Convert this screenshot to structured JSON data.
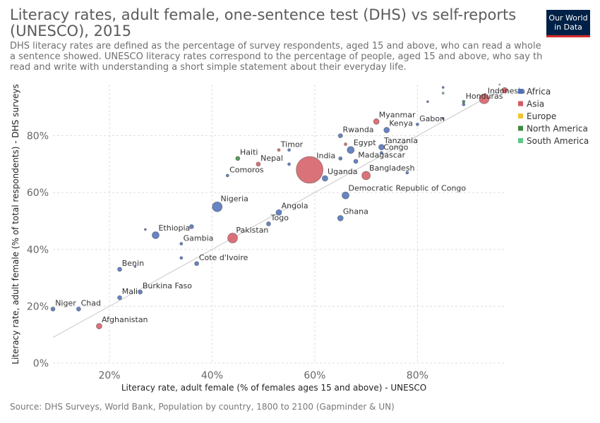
{
  "title": "Literacy rates, adult female, one-sentence test (DHS) vs self-reports (UNESCO), 2015",
  "subtitle": "DHS literacy rates are defined as the percentage of survey respondents, aged 15 and above, who can read a whole\na sentence showed. UNESCO literacy rates correspond to the percentage of people, aged 15 and above, who say th\nread and write with understanding a short simple statement about their everyday life.",
  "logo": "Our World\nin Data",
  "source": "Source: DHS Surveys, World Bank, Population by country, 1800 to 2100 (Gapminder & UN)",
  "colors": {
    "Africa": "#4c6fb8",
    "Asia": "#d45a62",
    "Europe": "#f2c230",
    "North America": "#3f8a3f",
    "South America": "#5ec78a",
    "reference_line": "#c8c8c8",
    "grid": "#dddddd"
  },
  "chart_data": {
    "type": "scatter",
    "title": "Literacy rates, adult female, one-sentence test (DHS) vs self-reports (UNESCO), 2015",
    "xlabel": "Literacy rate, adult female (% of females ages 15 and above) - UNESCO",
    "ylabel": "Literacy rate, adult female (% of total respondents) - DHS surveys",
    "xlim": [
      9,
      97
    ],
    "ylim": [
      0,
      98
    ],
    "xticks": [
      20,
      40,
      60,
      80
    ],
    "yticks": [
      0,
      20,
      40,
      60,
      80
    ],
    "tick_suffix": "%",
    "grid": true,
    "reference_line": "y = x",
    "legend_position": "right",
    "legend": [
      "Africa",
      "Asia",
      "Europe",
      "North America",
      "South America"
    ],
    "bubble_size": "population",
    "points": [
      {
        "label": "India",
        "x": 59,
        "y": 68,
        "region": "Asia",
        "r": 19
      },
      {
        "label": "Indonesia",
        "x": 93,
        "y": 93,
        "region": "Asia",
        "r": 7
      },
      {
        "label": "Honduras",
        "x": 89,
        "y": 92,
        "region": "North America",
        "r": 2
      },
      {
        "label": "Myanmar",
        "x": 72,
        "y": 85,
        "region": "Asia",
        "r": 4
      },
      {
        "label": "Kenya",
        "x": 74,
        "y": 82,
        "region": "Africa",
        "r": 4
      },
      {
        "label": "Gabon",
        "x": 80,
        "y": 84,
        "region": "Africa",
        "r": 2
      },
      {
        "label": "Rwanda",
        "x": 65,
        "y": 80,
        "region": "Africa",
        "r": 3
      },
      {
        "label": "Egypt",
        "x": 67,
        "y": 75,
        "region": "Africa",
        "r": 5
      },
      {
        "label": "Tanzania",
        "x": 73,
        "y": 76,
        "region": "Africa",
        "r": 4
      },
      {
        "label": "Congo",
        "x": 73,
        "y": 74,
        "region": "Africa",
        "r": 2
      },
      {
        "label": "Madagascar",
        "x": 68,
        "y": 71,
        "region": "Africa",
        "r": 3
      },
      {
        "label": "Bangladesh",
        "x": 70,
        "y": 66,
        "region": "Asia",
        "r": 6
      },
      {
        "label": "Uganda",
        "x": 62,
        "y": 65,
        "region": "Africa",
        "r": 4
      },
      {
        "label": "Democratic Republic of Congo",
        "x": 66,
        "y": 59,
        "region": "Africa",
        "r": 5
      },
      {
        "label": "Timor",
        "x": 53,
        "y": 75,
        "region": "Asia",
        "r": 2
      },
      {
        "label": "Nepal",
        "x": 49,
        "y": 70,
        "region": "Asia",
        "r": 3
      },
      {
        "label": "Haiti",
        "x": 45,
        "y": 72,
        "region": "North America",
        "r": 3
      },
      {
        "label": "Comoros",
        "x": 43,
        "y": 66,
        "region": "Africa",
        "r": 2
      },
      {
        "label": "Nigeria",
        "x": 41,
        "y": 55,
        "region": "Africa",
        "r": 7
      },
      {
        "label": "Angola",
        "x": 53,
        "y": 53,
        "region": "Africa",
        "r": 4
      },
      {
        "label": "Togo",
        "x": 51,
        "y": 49,
        "region": "Africa",
        "r": 3
      },
      {
        "label": "Ghana",
        "x": 65,
        "y": 51,
        "region": "Africa",
        "r": 4
      },
      {
        "label": "Pakistan",
        "x": 44,
        "y": 44,
        "region": "Asia",
        "r": 7
      },
      {
        "label": "Ethiopia",
        "x": 29,
        "y": 45,
        "region": "Africa",
        "r": 5
      },
      {
        "label": "Gambia",
        "x": 34,
        "y": 42,
        "region": "Africa",
        "r": 2
      },
      {
        "label": "Cote d'Ivoire",
        "x": 37,
        "y": 35,
        "region": "Africa",
        "r": 3
      },
      {
        "label": "Benin",
        "x": 22,
        "y": 33,
        "region": "Africa",
        "r": 3
      },
      {
        "label": "Burkina Faso",
        "x": 26,
        "y": 25,
        "region": "Africa",
        "r": 3
      },
      {
        "label": "Mali",
        "x": 22,
        "y": 23,
        "region": "Africa",
        "r": 3
      },
      {
        "label": "Niger",
        "x": 9,
        "y": 19,
        "region": "Africa",
        "r": 3
      },
      {
        "label": "Chad",
        "x": 14,
        "y": 19,
        "region": "Africa",
        "r": 3
      },
      {
        "label": "Afghanistan",
        "x": 18,
        "y": 13,
        "region": "Asia",
        "r": 4
      },
      {
        "label": "",
        "x": 97,
        "y": 96,
        "region": "Asia",
        "r": 4
      },
      {
        "label": "",
        "x": 96,
        "y": 98,
        "region": "Europe",
        "r": 1
      },
      {
        "label": "",
        "x": 85,
        "y": 97,
        "region": "Africa",
        "r": 1.5
      },
      {
        "label": "",
        "x": 82,
        "y": 92,
        "region": "Africa",
        "r": 1.5
      },
      {
        "label": "",
        "x": 89,
        "y": 91,
        "region": "Africa",
        "r": 2
      },
      {
        "label": "",
        "x": 85,
        "y": 86,
        "region": "Africa",
        "r": 1.5
      },
      {
        "label": "",
        "x": 85,
        "y": 95,
        "region": "South America",
        "r": 1.5
      },
      {
        "label": "",
        "x": 78,
        "y": 67,
        "region": "Africa",
        "r": 2
      },
      {
        "label": "",
        "x": 65,
        "y": 72,
        "region": "Africa",
        "r": 2.5
      },
      {
        "label": "",
        "x": 66,
        "y": 77,
        "region": "Asia",
        "r": 2
      },
      {
        "label": "",
        "x": 55,
        "y": 75,
        "region": "Africa",
        "r": 2
      },
      {
        "label": "",
        "x": 55,
        "y": 70,
        "region": "Africa",
        "r": 2
      },
      {
        "label": "",
        "x": 36,
        "y": 48,
        "region": "Africa",
        "r": 3
      },
      {
        "label": "",
        "x": 27,
        "y": 47,
        "region": "Africa",
        "r": 1.5
      },
      {
        "label": "",
        "x": 34,
        "y": 37,
        "region": "Africa",
        "r": 2
      },
      {
        "label": "",
        "x": 25,
        "y": 34,
        "region": "Africa",
        "r": 1.5
      }
    ]
  }
}
